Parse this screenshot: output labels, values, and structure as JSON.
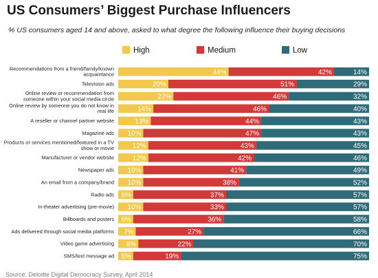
{
  "title": "US Consumers’ Biggest Purchase Influencers",
  "subtitle": "% US consumers aged 14 and above, asked to what degree the following influence their buying decisions",
  "source": "Source: Deloitte Digital Democracy Survey, April 2014",
  "colors": {
    "high": "#f2c94c",
    "medium": "#d23a3a",
    "low": "#2f6b78"
  },
  "chart_data": {
    "type": "bar",
    "orientation": "horizontal",
    "stacked": true,
    "xlim": [
      0,
      100
    ],
    "legend_position": "top",
    "categories": [
      [
        "Recommendations from a friend/family/known",
        "acquaintance"
      ],
      [
        "Television ads"
      ],
      [
        "Online review or recommendation from",
        "someone within your social media circle"
      ],
      [
        "Online review by someone you do not know in",
        "real life"
      ],
      [
        "A reseller or channel partner website"
      ],
      [
        "Magazine ads"
      ],
      [
        "Products or services mentioned/featured in a TV",
        "show or movie"
      ],
      [
        "Manufacturer or vendor website"
      ],
      [
        "Newspaper ads"
      ],
      [
        "An email from a company/brand"
      ],
      [
        "Radio ads"
      ],
      [
        "In-theater advertising (pre-movie)"
      ],
      [
        "Billboards and posters"
      ],
      [
        "Ads delivered through social media platforms"
      ],
      [
        "Video game advertising"
      ],
      [
        "SMS/text message ad"
      ]
    ],
    "series": [
      {
        "name": "High",
        "color": "#f2c94c",
        "values": [
          44,
          20,
          22,
          14,
          13,
          10,
          12,
          12,
          10,
          10,
          6,
          10,
          6,
          7,
          8,
          6
        ]
      },
      {
        "name": "Medium",
        "color": "#d23a3a",
        "values": [
          42,
          51,
          46,
          46,
          44,
          47,
          43,
          42,
          41,
          38,
          37,
          33,
          36,
          27,
          22,
          19
        ]
      },
      {
        "name": "Low",
        "color": "#2f6b78",
        "values": [
          14,
          29,
          32,
          40,
          43,
          43,
          45,
          46,
          49,
          52,
          57,
          57,
          58,
          66,
          70,
          75
        ]
      }
    ]
  }
}
